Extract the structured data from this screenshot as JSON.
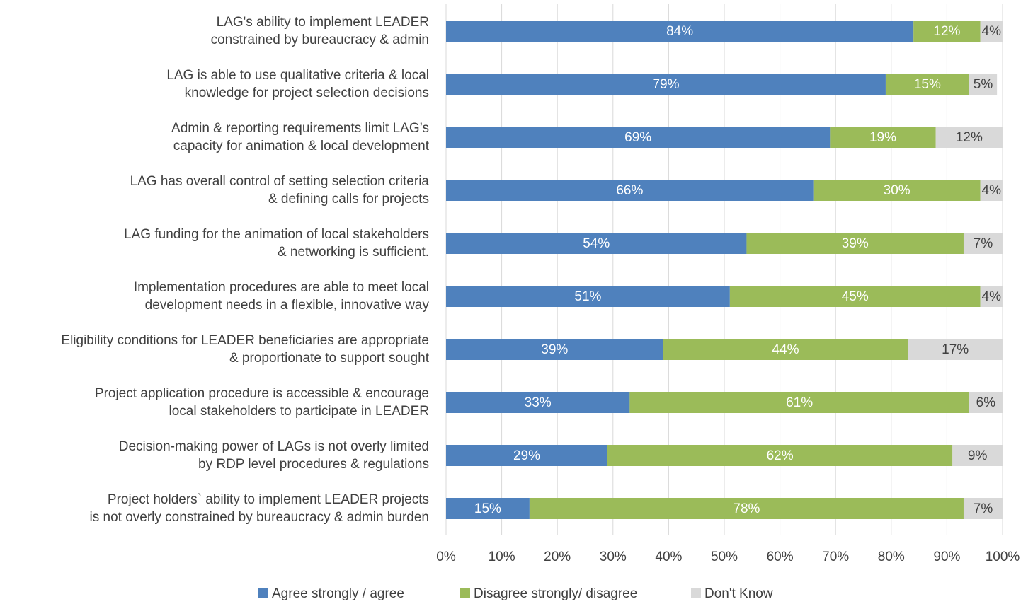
{
  "chart_data": {
    "type": "stacked-bar-horizontal",
    "categories": [
      [
        "LAG's ability to implement LEADER",
        "constrained by bureaucracy & admin"
      ],
      [
        "LAG is able to use qualitative criteria & local",
        "knowledge for project selection decisions"
      ],
      [
        "Admin & reporting requirements limit LAG’s",
        "capacity for animation & local development"
      ],
      [
        "LAG has overall control of setting selection criteria",
        "& defining calls for projects"
      ],
      [
        "LAG funding for the animation of local stakeholders",
        "& networking is sufficient."
      ],
      [
        "Implementation procedures are able to meet local",
        "development needs in a flexible, innovative way"
      ],
      [
        "Eligibility conditions for LEADER beneficiaries are appropriate",
        "& proportionate to support sought"
      ],
      [
        "Project application procedure is accessible & encourage",
        "local stakeholders to participate in LEADER"
      ],
      [
        "Decision-making power of LAGs is not overly limited",
        "by RDP level procedures & regulations"
      ],
      [
        "Project holders` ability to implement LEADER projects",
        "is not overly constrained by bureaucracy & admin burden"
      ]
    ],
    "series": [
      {
        "name": "Agree strongly / agree",
        "color": "#4f81bd",
        "label_color": "#ffffff",
        "values": [
          84,
          79,
          69,
          66,
          54,
          51,
          39,
          33,
          29,
          15
        ],
        "value_labels": [
          "84%",
          "79%",
          "69%",
          "66%",
          "54%",
          "51%",
          "39%",
          "33%",
          "29%",
          "15%"
        ]
      },
      {
        "name": "Disagree strongly/ disagree",
        "color": "#9bbb59",
        "label_color": "#ffffff",
        "values": [
          12,
          15,
          19,
          30,
          39,
          45,
          44,
          61,
          62,
          78
        ],
        "value_labels": [
          "12%",
          "15%",
          "19%",
          "30%",
          "39%",
          "45%",
          "44%",
          "61%",
          "62%",
          "78%"
        ]
      },
      {
        "name": "Don't Know",
        "color": "#d9d9d9",
        "label_color": "#404040",
        "values": [
          4,
          5,
          12,
          4,
          7,
          4,
          17,
          6,
          9,
          7
        ],
        "value_labels": [
          "4%",
          "5%",
          "12%",
          "4%",
          "7%",
          "4%",
          "17%",
          "6%",
          "9%",
          "7%"
        ]
      }
    ],
    "xlim": [
      0,
      100
    ],
    "xticks": [
      {
        "value": 0,
        "label": "0%"
      },
      {
        "value": 10,
        "label": "10%"
      },
      {
        "value": 20,
        "label": "20%"
      },
      {
        "value": 30,
        "label": "30%"
      },
      {
        "value": 40,
        "label": "40%"
      },
      {
        "value": 50,
        "label": "50%"
      },
      {
        "value": 60,
        "label": "60%"
      },
      {
        "value": 70,
        "label": "70%"
      },
      {
        "value": 80,
        "label": "80%"
      },
      {
        "value": 90,
        "label": "90%"
      },
      {
        "value": 100,
        "label": "100%"
      }
    ],
    "grid": true,
    "legend": "bottom"
  }
}
